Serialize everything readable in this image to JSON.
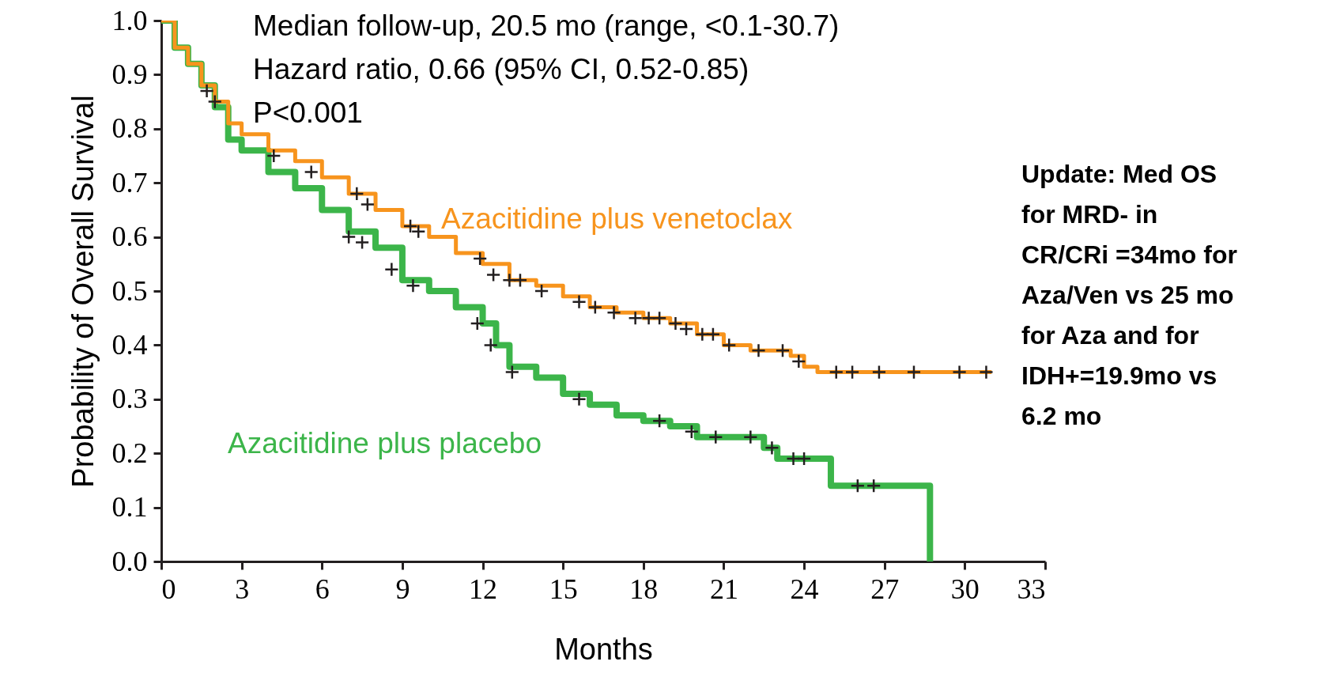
{
  "chart_data": {
    "type": "step",
    "xlabel": "Months",
    "ylabel": "Probability of Overall Survival",
    "xlim": [
      0,
      33
    ],
    "xticks": [
      0,
      3,
      6,
      9,
      12,
      15,
      18,
      21,
      24,
      27,
      30,
      33
    ],
    "ylim": [
      0,
      1
    ],
    "yticks": [
      {
        "value": 0,
        "label": "0.0"
      },
      0.1,
      0.2,
      0.3,
      0.4,
      0.5,
      0.6,
      0.7,
      0.8,
      0.9,
      {
        "value": 1,
        "label": "1.0"
      }
    ],
    "grid": false,
    "legend": false,
    "annotations": [
      "Median follow-up, 20.5 mo (range, <0.1-30.7)",
      "Hazard ratio, 0.66 (95% CI, 0.52-0.85)",
      "P<0.001",
      "Update: Med OS for MRD- in CR/CRi =34mo for Aza/Ven  vs 25 mo for Aza and for IDH+=19.9mo vs 6.2 mo"
    ],
    "series": [
      {
        "name": "Azacitidine plus venetoclax",
        "color": "#f7941d",
        "x": [
          0,
          0.5,
          1,
          1.5,
          2,
          2.5,
          3,
          4,
          5,
          6,
          7,
          8,
          9,
          10,
          11,
          12,
          13,
          14,
          15,
          16,
          17,
          18,
          19,
          20,
          21,
          22,
          23.5,
          24,
          24.5,
          31
        ],
        "values": [
          1.0,
          0.95,
          0.92,
          0.88,
          0.85,
          0.81,
          0.79,
          0.76,
          0.74,
          0.71,
          0.68,
          0.65,
          0.62,
          0.6,
          0.57,
          0.55,
          0.52,
          0.51,
          0.49,
          0.47,
          0.46,
          0.45,
          0.44,
          0.42,
          0.4,
          0.39,
          0.38,
          0.36,
          0.35,
          0.35
        ]
      },
      {
        "name": "Azacitidine plus placebo",
        "color": "#3cb54a",
        "x": [
          0,
          0.5,
          1,
          1.5,
          2,
          2.5,
          3,
          4,
          5,
          6,
          7,
          8,
          9,
          10,
          11,
          12,
          12.5,
          13,
          14,
          15,
          16,
          17,
          18,
          19,
          20,
          22.5,
          23,
          25,
          28.7
        ],
        "values": [
          1.0,
          0.95,
          0.92,
          0.88,
          0.84,
          0.78,
          0.76,
          0.72,
          0.69,
          0.65,
          0.61,
          0.58,
          0.52,
          0.5,
          0.47,
          0.44,
          0.4,
          0.36,
          0.34,
          0.31,
          0.29,
          0.27,
          0.26,
          0.25,
          0.23,
          0.21,
          0.19,
          0.14,
          0.0
        ]
      },
      {
        "type": "scatter",
        "color": "#231f20",
        "marker": "cross",
        "x": [
          4.2,
          5.6,
          7.3,
          7.7,
          9.3,
          9.6,
          11.9,
          12.4,
          13,
          13.4,
          14.2,
          15.6,
          16.2,
          16.9,
          17.7,
          18.2,
          18.6,
          19.2,
          19.6,
          20.2,
          20.6,
          21.2,
          22.3,
          23.2,
          23.8,
          25.2,
          25.8,
          26.8,
          28.1,
          29.8,
          30.8
        ],
        "values": [
          0.75,
          0.72,
          0.68,
          0.66,
          0.62,
          0.61,
          0.56,
          0.53,
          0.52,
          0.52,
          0.5,
          0.48,
          0.47,
          0.46,
          0.45,
          0.45,
          0.45,
          0.44,
          0.43,
          0.42,
          0.42,
          0.4,
          0.39,
          0.39,
          0.37,
          0.35,
          0.35,
          0.35,
          0.35,
          0.35,
          0.35
        ]
      },
      {
        "type": "scatter",
        "color": "#231f20",
        "marker": "cross",
        "x": [
          1.7,
          2.0,
          7.0,
          7.5,
          8.6,
          9.4,
          11.8,
          12.3,
          13.1,
          15.6,
          18.6,
          19.8,
          20.7,
          22.0,
          22.8,
          23.6,
          24.0,
          26.0,
          26.6
        ],
        "values": [
          0.87,
          0.85,
          0.6,
          0.59,
          0.54,
          0.51,
          0.44,
          0.4,
          0.35,
          0.3,
          0.26,
          0.24,
          0.23,
          0.23,
          0.21,
          0.19,
          0.19,
          0.14,
          0.14
        ]
      }
    ]
  }
}
